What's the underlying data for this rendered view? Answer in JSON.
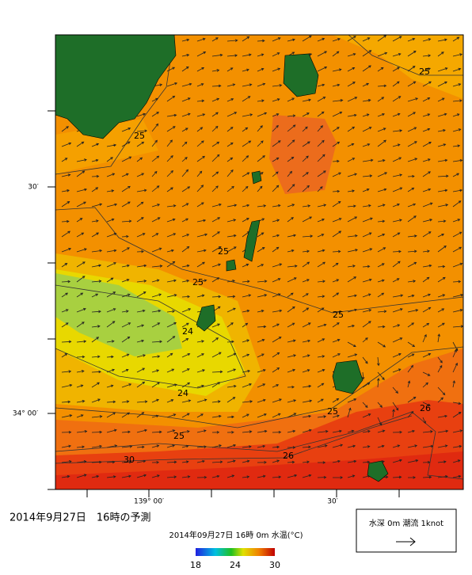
{
  "axes": {
    "y_labels": [
      "30′",
      "34° 00′"
    ],
    "x_labels": [
      "139° 00′",
      "30′"
    ]
  },
  "contour_labels": [
    "25",
    "25",
    "25",
    "25",
    "25",
    "24",
    "24",
    "25",
    "25",
    "26",
    "26",
    "30"
  ],
  "caption": "2014年9月27日　16時の予測",
  "subtitle": "2014年09月27日 16時 0m 水温(°C)",
  "colorbar": {
    "range": [
      18,
      30
    ],
    "ticks": [
      18,
      24,
      30
    ]
  },
  "legend": "水深 0m 潮流 1knot"
}
